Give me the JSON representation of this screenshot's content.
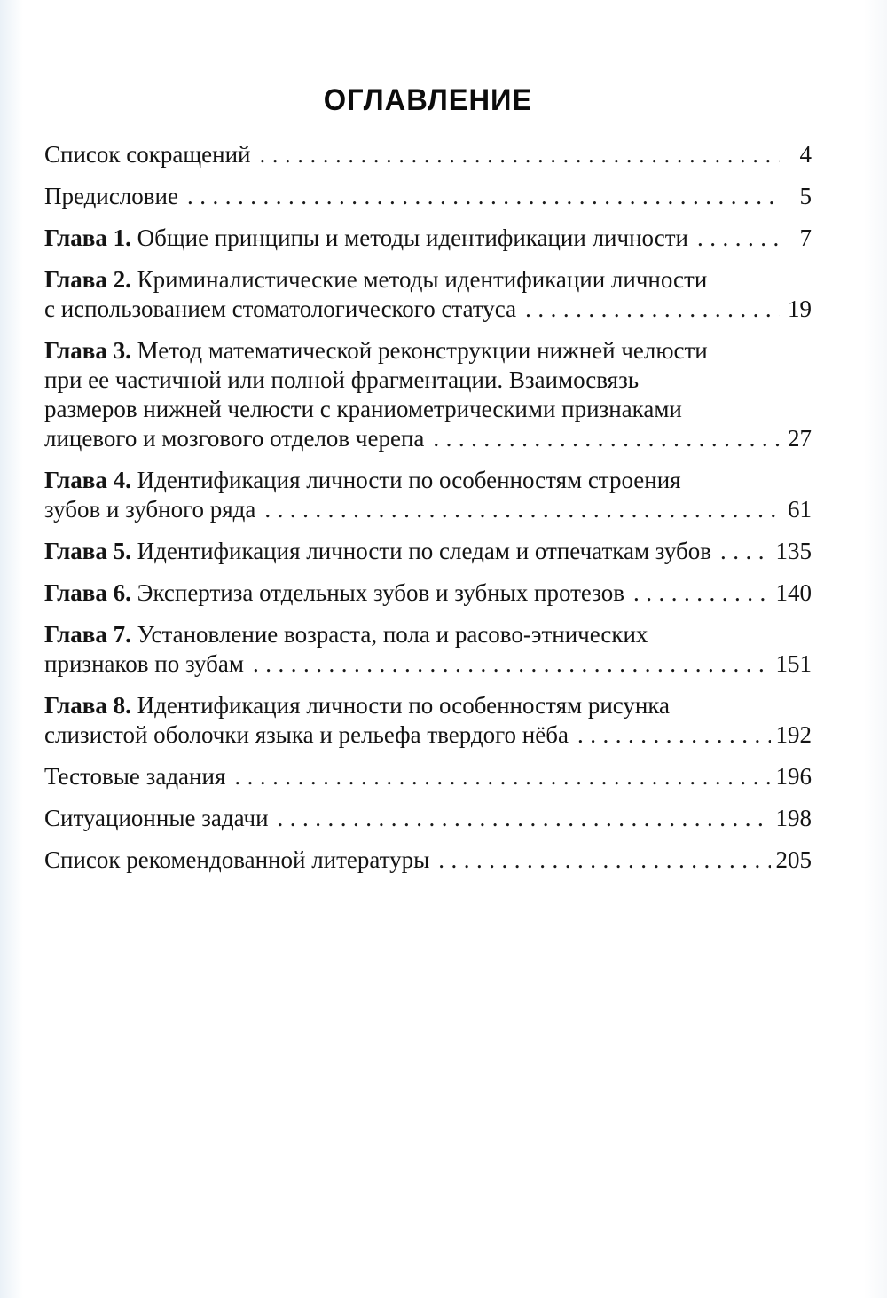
{
  "page": {
    "title": "ОГЛАВЛЕНИЕ",
    "leader_char": ".",
    "toc": [
      {
        "prefix": "",
        "lines": [
          "Список сокращений"
        ],
        "page": "4"
      },
      {
        "prefix": "",
        "lines": [
          "Предисловие"
        ],
        "page": "5"
      },
      {
        "prefix": "Глава 1.",
        "lines": [
          "Общие принципы и методы идентификации личности"
        ],
        "page": "7"
      },
      {
        "prefix": "Глава 2.",
        "lines": [
          "Криминалистические методы идентификации личности",
          "с использованием стоматологического статуса"
        ],
        "page": "19"
      },
      {
        "prefix": "Глава 3.",
        "lines": [
          "Метод математической реконструкции нижней челюсти",
          "при ее частичной или полной фрагментации. Взаимосвязь",
          "размеров нижней челюсти с краниометрическими признаками",
          "лицевого и мозгового отделов черепа"
        ],
        "page": "27"
      },
      {
        "prefix": "Глава 4.",
        "lines": [
          "Идентификация личности по особенностям строения",
          "зубов и зубного ряда"
        ],
        "page": "61"
      },
      {
        "prefix": "Глава 5.",
        "lines": [
          "Идентификация личности по следам и отпечаткам зубов"
        ],
        "page": "135"
      },
      {
        "prefix": "Глава 6.",
        "lines": [
          "Экспертиза отдельных зубов и зубных протезов"
        ],
        "page": "140"
      },
      {
        "prefix": "Глава 7.",
        "lines": [
          "Установление возраста, пола и расово-этнических",
          "признаков по зубам"
        ],
        "page": "151"
      },
      {
        "prefix": "Глава 8.",
        "lines": [
          "Идентификация личности по особенностям рисунка",
          "слизистой оболочки языка и рельефа твердого нёба"
        ],
        "page": "192"
      },
      {
        "prefix": "",
        "lines": [
          "Тестовые задания"
        ],
        "page": "196"
      },
      {
        "prefix": "",
        "lines": [
          "Ситуационные задачи"
        ],
        "page": "198"
      },
      {
        "prefix": "",
        "lines": [
          "Список рекомендованной литературы"
        ],
        "page": "205"
      }
    ]
  }
}
